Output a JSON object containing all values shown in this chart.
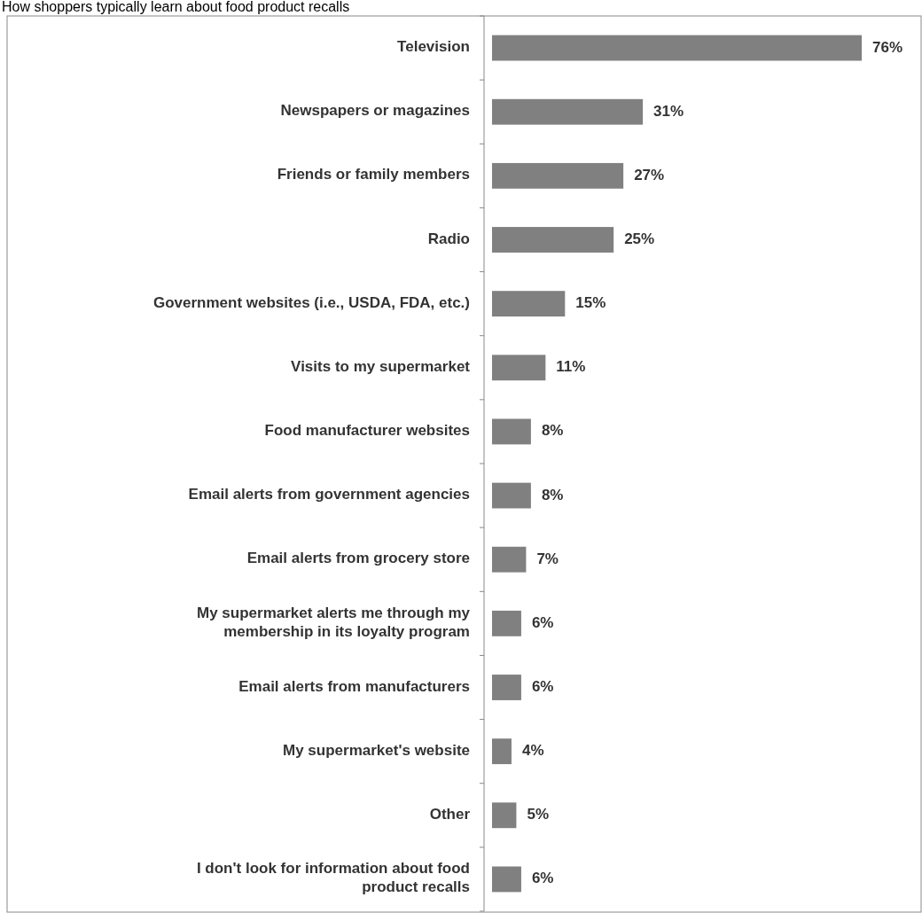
{
  "chart_data": {
    "type": "bar",
    "orientation": "horizontal",
    "title": "How shoppers typically learn about food product recalls",
    "categories": [
      "Television",
      "Newspapers or magazines",
      "Friends or family members",
      "Radio",
      "Government websites (i.e., USDA, FDA, etc.)",
      "Visits to my supermarket",
      "Food manufacturer websites",
      "Email alerts from government agencies",
      "Email alerts from grocery store",
      "My supermarket alerts me through my membership in its loyalty program",
      "Email alerts from manufacturers",
      "My supermarket's website",
      "Other",
      "I don't look for information about food product recalls"
    ],
    "values": [
      76,
      31,
      27,
      25,
      15,
      11,
      8,
      8,
      7,
      6,
      6,
      4,
      5,
      6
    ],
    "value_labels": [
      "76%",
      "31%",
      "27%",
      "25%",
      "15%",
      "11%",
      "8%",
      "8%",
      "7%",
      "6%",
      "6%",
      "4%",
      "5%",
      "6%"
    ],
    "color": "#808080"
  }
}
